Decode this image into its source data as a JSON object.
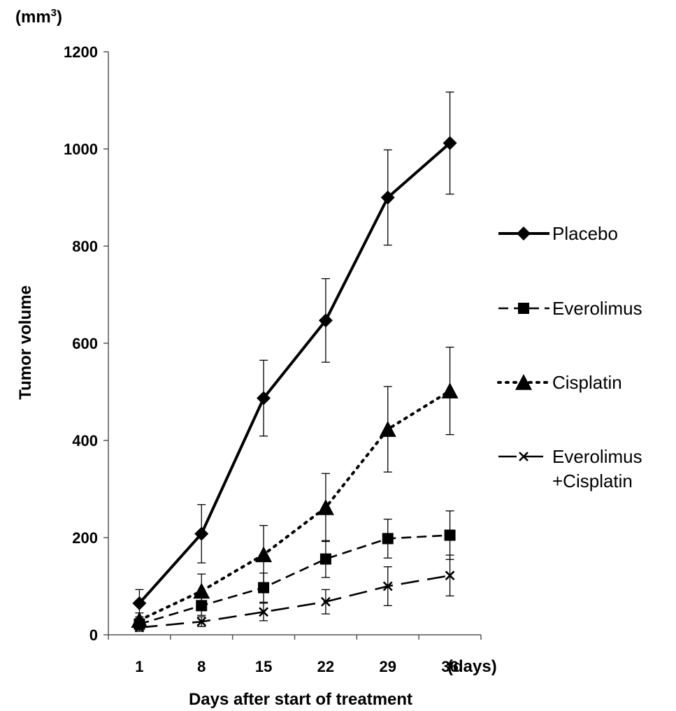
{
  "chart_data": {
    "type": "line",
    "x": [
      1,
      8,
      15,
      22,
      29,
      36
    ],
    "xticklabels": [
      "1",
      "8",
      "15",
      "22",
      "29",
      "36"
    ],
    "x_unit": "(days)",
    "xlabel": "Days after start of treatment",
    "ylabel": "Tumor volume",
    "y_unit_prefix": "(mm",
    "y_unit_sup": "3",
    "y_unit_suffix": ")",
    "ylim": [
      0,
      1200
    ],
    "yticks": [
      0,
      200,
      400,
      600,
      800,
      1000,
      1200
    ],
    "legend_position": "right",
    "grid": false,
    "series": [
      {
        "name": "Placebo",
        "style": "solid",
        "marker": "diamond",
        "values": [
          65,
          208,
          487,
          647,
          900,
          1012
        ],
        "errors": [
          28,
          60,
          78,
          86,
          98,
          105
        ]
      },
      {
        "name": "Everolimus",
        "style": "dashed",
        "marker": "square",
        "values": [
          22,
          60,
          97,
          156,
          198,
          205
        ],
        "errors": [
          12,
          20,
          30,
          38,
          40,
          50
        ]
      },
      {
        "name": "Cisplatin",
        "style": "dotted",
        "marker": "triangle",
        "values": [
          30,
          90,
          165,
          262,
          423,
          502
        ],
        "errors": [
          15,
          35,
          60,
          70,
          88,
          90
        ]
      },
      {
        "name": "Everolimus\n+Cisplatin",
        "style": "longdash",
        "marker": "x",
        "values": [
          15,
          27,
          47,
          68,
          100,
          122
        ],
        "errors": [
          8,
          10,
          18,
          25,
          40,
          42
        ]
      }
    ]
  }
}
